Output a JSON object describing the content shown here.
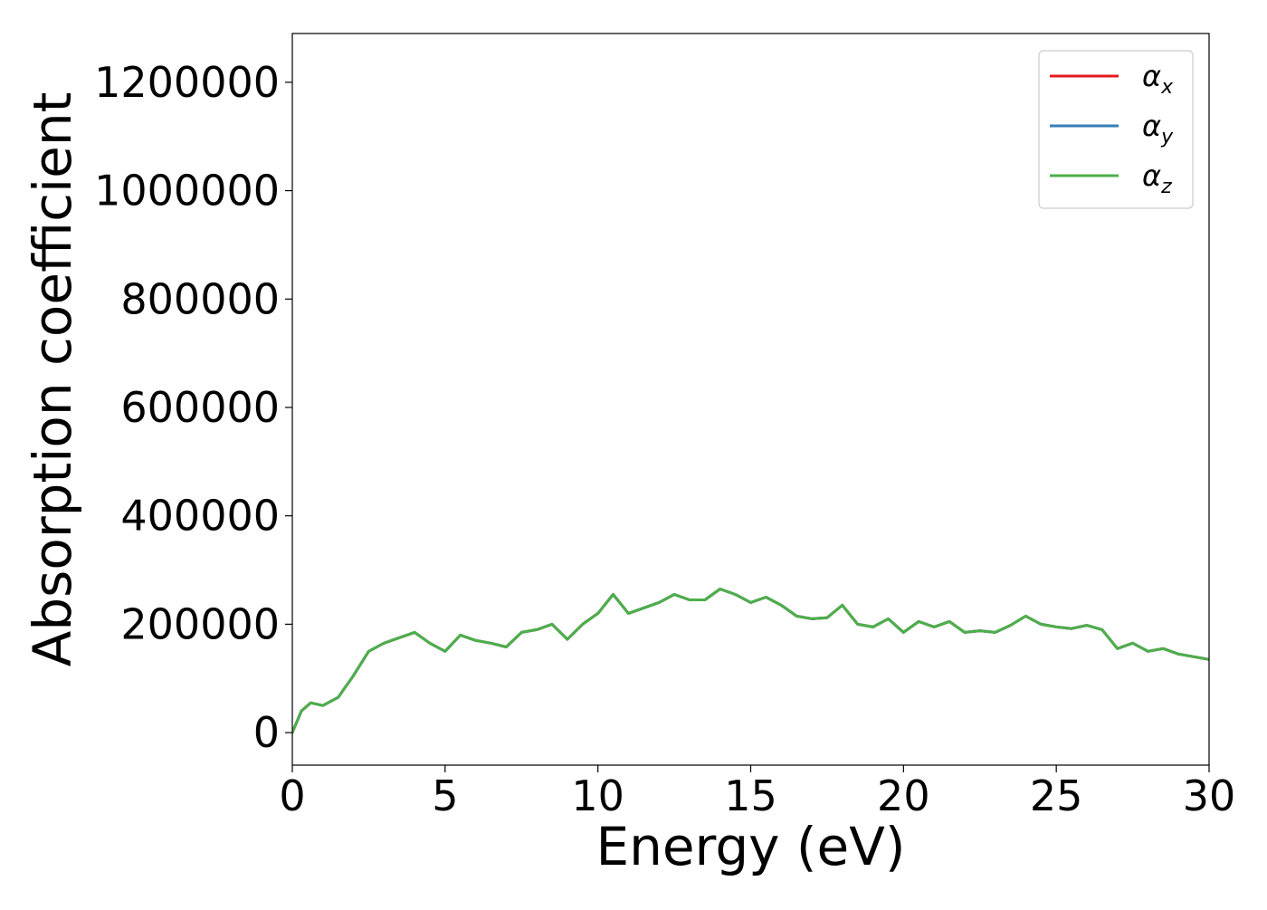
{
  "chart_data": {
    "type": "line",
    "title": "",
    "xlabel": "Energy (eV)",
    "ylabel": "Absorption coefficient",
    "xlim": [
      0,
      30
    ],
    "ylim": [
      -60000,
      1290000
    ],
    "xticks": [
      0,
      5,
      10,
      15,
      20,
      25,
      30
    ],
    "xtick_labels": [
      "0",
      "5",
      "10",
      "15",
      "20",
      "25",
      "30"
    ],
    "yticks": [
      0,
      200000,
      400000,
      600000,
      800000,
      1000000,
      1200000
    ],
    "ytick_labels": [
      "0",
      "200000",
      "400000",
      "600000",
      "800000",
      "1000000",
      "1200000"
    ],
    "grid": false,
    "legend_position": "top-right",
    "series": [
      {
        "name": "α",
        "subscript": "x",
        "color": "#e41a1c",
        "x": [
          0,
          0.3,
          0.6,
          1.0,
          1.5,
          2.0,
          2.5,
          3.0,
          3.5,
          4.0,
          4.5,
          5.0,
          5.5,
          6.0,
          6.5,
          7.0,
          7.5,
          8.0,
          8.5,
          9.0,
          9.5,
          10.0,
          10.5,
          11.0,
          11.5,
          12.0,
          12.5,
          13.0,
          13.5,
          14.0,
          14.5,
          15.0,
          15.5,
          16.0,
          16.5,
          17.0,
          17.5,
          18.0,
          18.5,
          19.0,
          19.5,
          20.0,
          20.5,
          21.0,
          21.5,
          22.0,
          22.5,
          23.0,
          23.5,
          24.0,
          24.5,
          25.0,
          25.5,
          26.0,
          26.5,
          27.0,
          27.5,
          28.0,
          28.5,
          29.0,
          29.5,
          30.0
        ],
        "y": [
          0,
          40000,
          55000,
          50000,
          65000,
          105000,
          150000,
          165000,
          175000,
          185000,
          165000,
          150000,
          180000,
          170000,
          165000,
          158000,
          185000,
          190000,
          200000,
          172000,
          200000,
          220000,
          255000,
          220000,
          230000,
          240000,
          255000,
          245000,
          245000,
          265000,
          255000,
          240000,
          250000,
          235000,
          215000,
          210000,
          212000,
          235000,
          200000,
          195000,
          210000,
          185000,
          205000,
          195000,
          205000,
          185000,
          188000,
          185000,
          198000,
          215000,
          200000,
          195000,
          192000,
          198000,
          190000,
          155000,
          165000,
          150000,
          155000,
          145000,
          140000,
          135000
        ]
      },
      {
        "name": "α",
        "subscript": "y",
        "color": "#377eb8",
        "x": [
          0,
          0.3,
          0.6,
          1.0,
          1.5,
          2.0,
          2.5,
          3.0,
          3.5,
          4.0,
          4.5,
          5.0,
          5.5,
          6.0,
          6.5,
          7.0,
          7.5,
          8.0,
          8.5,
          9.0,
          9.5,
          10.0,
          10.5,
          11.0,
          11.5,
          12.0,
          12.5,
          13.0,
          13.5,
          14.0,
          14.5,
          15.0,
          15.5,
          16.0,
          16.5,
          17.0,
          17.5,
          18.0,
          18.5,
          19.0,
          19.5,
          20.0,
          20.5,
          21.0,
          21.5,
          22.0,
          22.5,
          23.0,
          23.5,
          24.0,
          24.5,
          25.0,
          25.5,
          26.0,
          26.5,
          27.0,
          27.5,
          28.0,
          28.5,
          29.0,
          29.5,
          30.0
        ],
        "y": [
          0,
          40000,
          55000,
          50000,
          65000,
          105000,
          150000,
          165000,
          175000,
          185000,
          165000,
          150000,
          180000,
          170000,
          165000,
          158000,
          185000,
          190000,
          200000,
          172000,
          200000,
          220000,
          255000,
          220000,
          230000,
          240000,
          255000,
          245000,
          245000,
          265000,
          255000,
          240000,
          250000,
          235000,
          215000,
          210000,
          212000,
          235000,
          200000,
          195000,
          210000,
          185000,
          205000,
          195000,
          205000,
          185000,
          188000,
          185000,
          198000,
          215000,
          200000,
          195000,
          192000,
          198000,
          190000,
          155000,
          165000,
          150000,
          155000,
          145000,
          140000,
          135000
        ]
      },
      {
        "name": "α",
        "subscript": "z",
        "color": "#4daf4a",
        "x": [
          0,
          0.3,
          0.6,
          1.0,
          1.5,
          2.0,
          2.5,
          3.0,
          3.5,
          4.0,
          4.5,
          5.0,
          5.5,
          6.0,
          6.5,
          7.0,
          7.5,
          8.0,
          8.5,
          9.0,
          9.5,
          10.0,
          10.5,
          11.0,
          11.5,
          12.0,
          12.5,
          13.0,
          13.5,
          14.0,
          14.5,
          15.0,
          15.5,
          16.0,
          16.5,
          17.0,
          17.5,
          18.0,
          18.5,
          19.0,
          19.5,
          20.0,
          20.5,
          21.0,
          21.5,
          22.0,
          22.5,
          23.0,
          23.5,
          24.0,
          24.5,
          25.0,
          25.5,
          26.0,
          26.5,
          27.0,
          27.5,
          28.0,
          28.5,
          29.0,
          29.5,
          30.0
        ],
        "y": [
          0,
          40000,
          55000,
          50000,
          65000,
          105000,
          150000,
          165000,
          175000,
          185000,
          165000,
          150000,
          180000,
          170000,
          165000,
          158000,
          185000,
          190000,
          200000,
          172000,
          200000,
          220000,
          255000,
          220000,
          230000,
          240000,
          255000,
          245000,
          245000,
          265000,
          255000,
          240000,
          250000,
          235000,
          215000,
          210000,
          212000,
          235000,
          200000,
          195000,
          210000,
          185000,
          205000,
          195000,
          205000,
          185000,
          188000,
          185000,
          198000,
          215000,
          200000,
          195000,
          192000,
          198000,
          190000,
          155000,
          165000,
          150000,
          155000,
          145000,
          140000,
          135000
        ]
      }
    ]
  }
}
